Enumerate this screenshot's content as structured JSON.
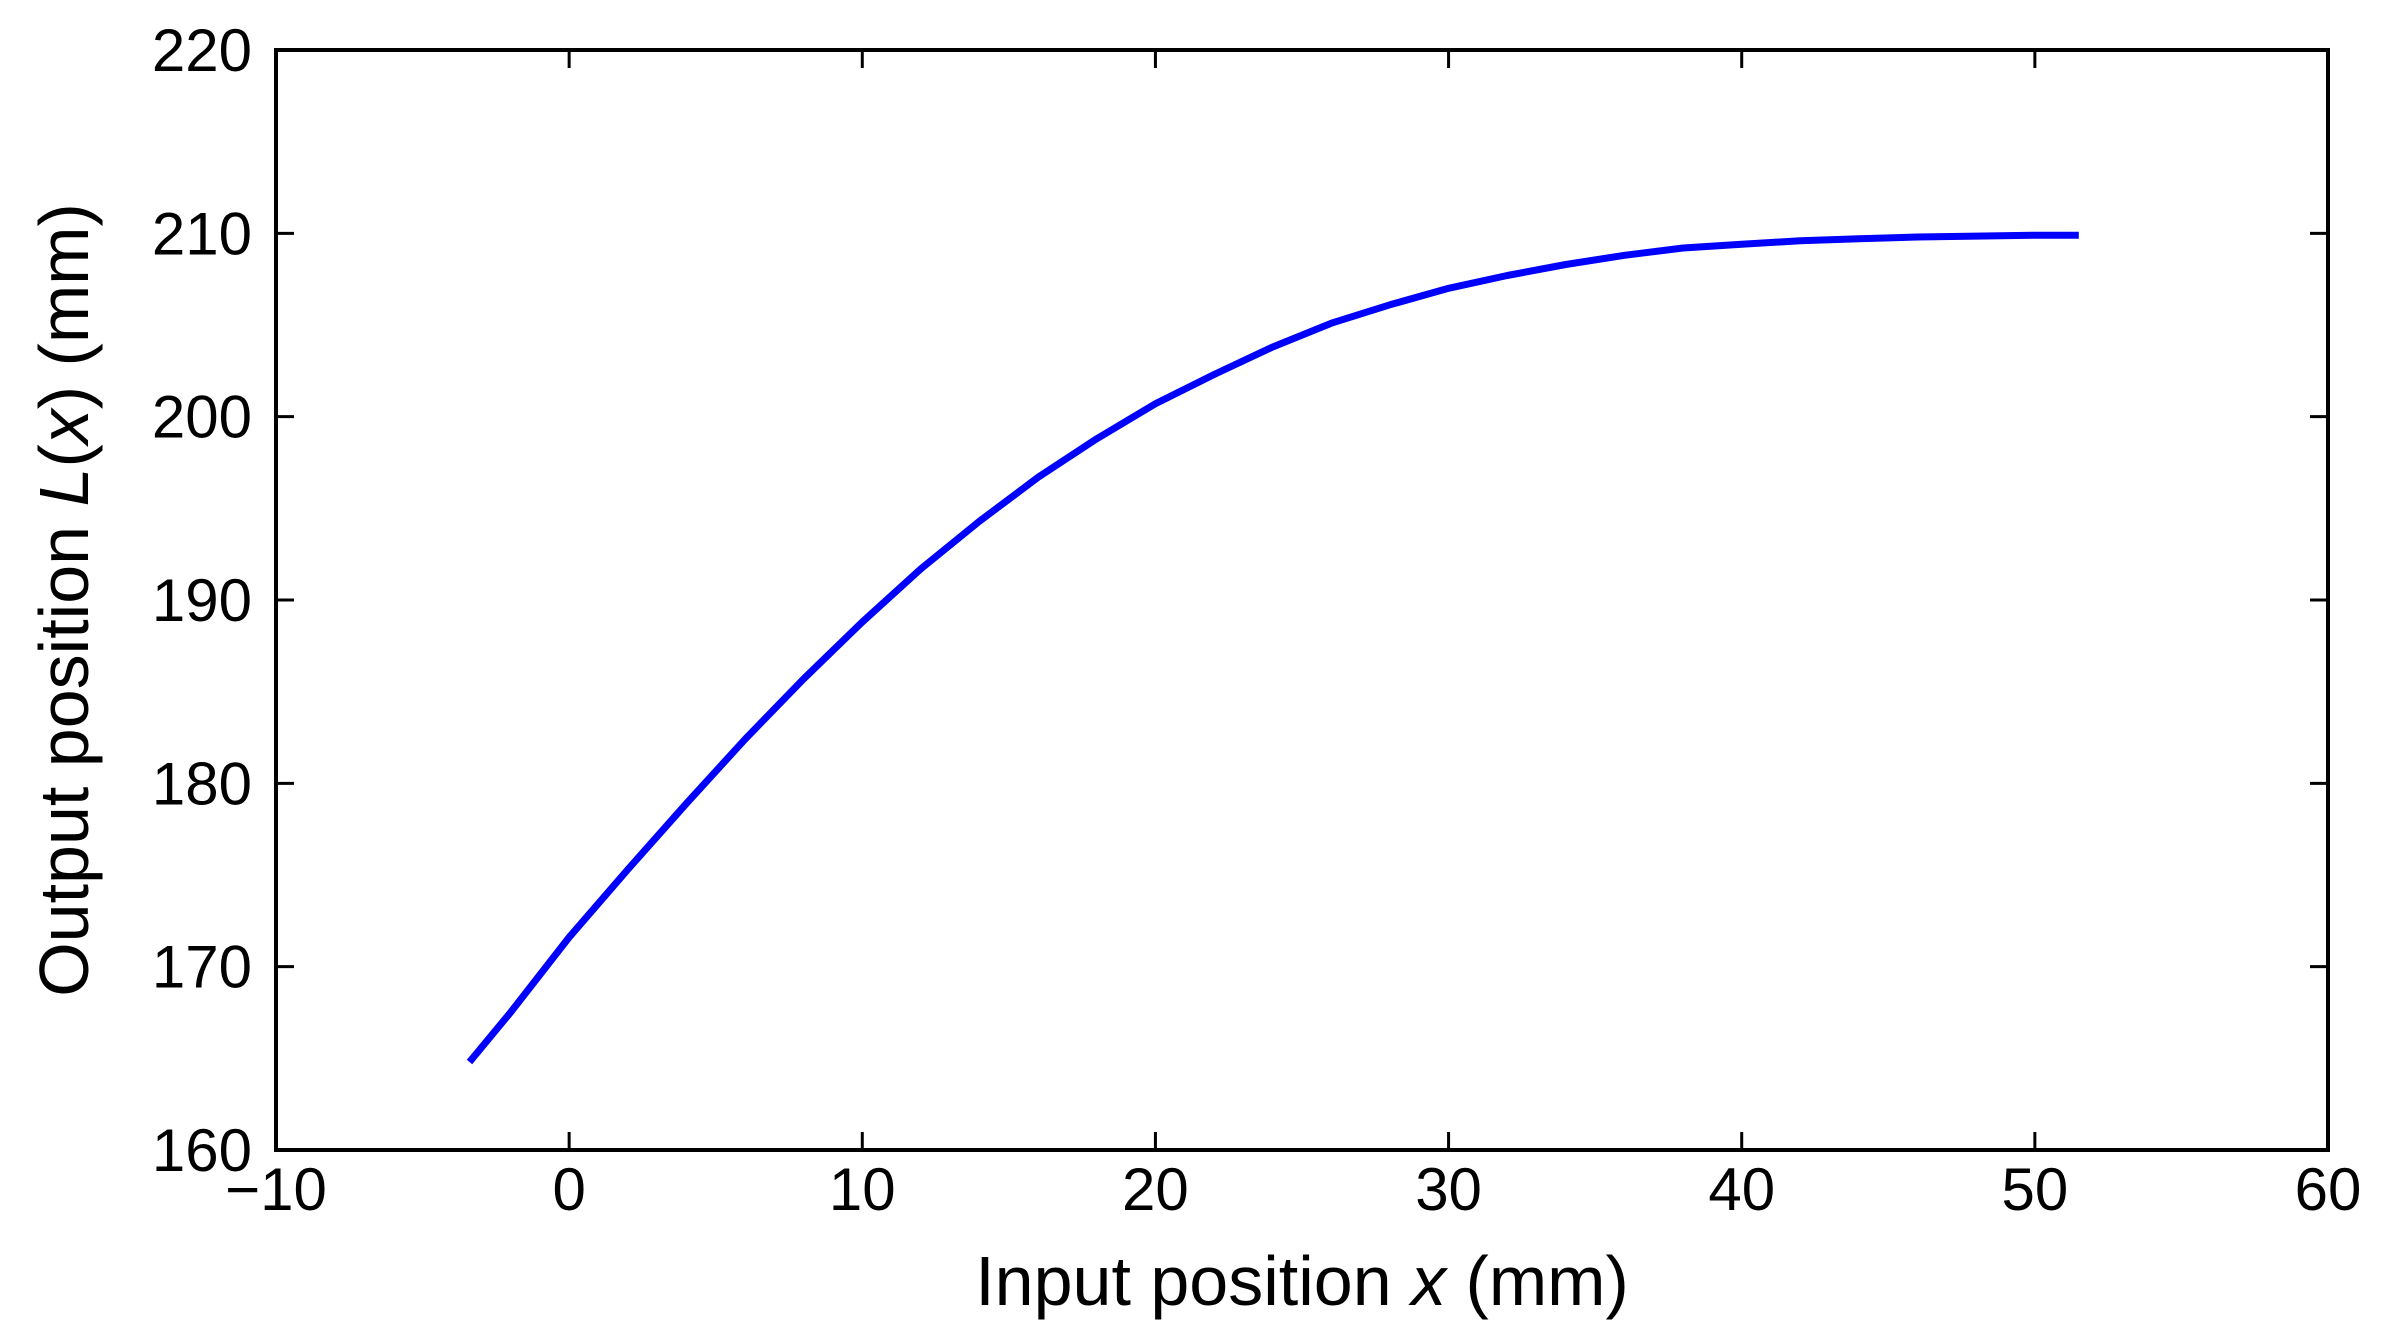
{
  "chart_data": {
    "type": "line",
    "title": "",
    "xlabel": {
      "before": "Input position ",
      "var": "x",
      "after": " (mm)"
    },
    "ylabel": {
      "before": "Output position ",
      "var1": "L",
      "mid1": "(",
      "var2": "x",
      "mid2": ")",
      "after": " (mm)"
    },
    "xlim": [
      -10,
      60
    ],
    "ylim": [
      160,
      220
    ],
    "xticks": [
      -10,
      0,
      10,
      20,
      30,
      40,
      50,
      60
    ],
    "yticks": [
      160,
      170,
      180,
      190,
      200,
      210,
      220
    ],
    "xtick_labels": [
      "−10",
      "0",
      "10",
      "20",
      "30",
      "40",
      "50",
      "60"
    ],
    "ytick_labels": [
      "160",
      "170",
      "180",
      "190",
      "200",
      "210",
      "220"
    ],
    "grid": false,
    "legend": "none",
    "series": [
      {
        "color": "#0000ff",
        "x": [
          -3.4,
          -2,
          0,
          2,
          4,
          6,
          8,
          10,
          12,
          14,
          16,
          18,
          20,
          22,
          24,
          26,
          28,
          30,
          32,
          34,
          36,
          38,
          40,
          42,
          44,
          46,
          48,
          50,
          51.5
        ],
        "y": [
          164.8,
          167.5,
          171.6,
          175.3,
          178.9,
          182.4,
          185.7,
          188.8,
          191.7,
          194.3,
          196.7,
          198.8,
          200.7,
          202.3,
          203.8,
          205.1,
          206.1,
          207.0,
          207.7,
          208.3,
          208.8,
          209.2,
          209.4,
          209.6,
          209.7,
          209.8,
          209.85,
          209.9,
          209.9
        ]
      }
    ]
  }
}
